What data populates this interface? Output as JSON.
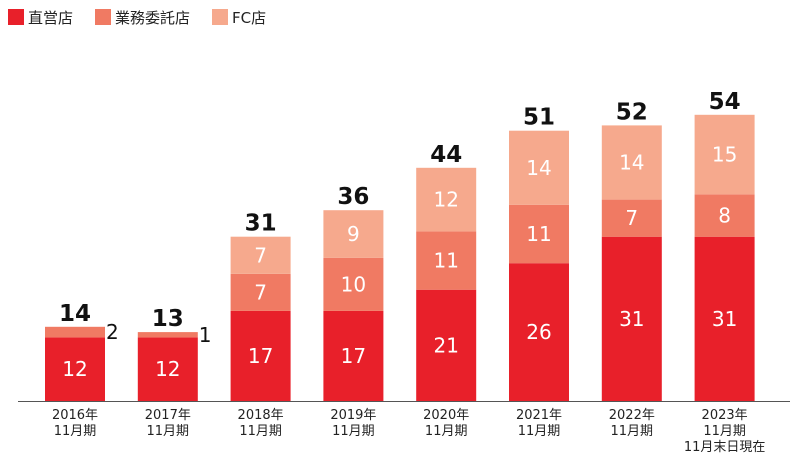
{
  "chart_data": {
    "type": "bar",
    "stacked": true,
    "categories": [
      [
        "2016年",
        "11月期"
      ],
      [
        "2017年",
        "11月期"
      ],
      [
        "2018年",
        "11月期"
      ],
      [
        "2019年",
        "11月期"
      ],
      [
        "2020年",
        "11月期"
      ],
      [
        "2021年",
        "11月期"
      ],
      [
        "2022年",
        "11月期"
      ],
      [
        "2023年",
        "11月期",
        "11月末日現在"
      ]
    ],
    "series": [
      {
        "name": "直営店",
        "color": "#e8202a",
        "values": [
          12,
          12,
          17,
          17,
          21,
          26,
          31,
          31
        ]
      },
      {
        "name": "業務委託店",
        "color": "#f07a63",
        "values": [
          2,
          1,
          7,
          10,
          11,
          11,
          7,
          8
        ]
      },
      {
        "name": "FC店",
        "color": "#f6a98d",
        "values": [
          0,
          0,
          7,
          9,
          12,
          14,
          14,
          15
        ]
      }
    ],
    "totals": [
      14,
      13,
      31,
      36,
      44,
      51,
      52,
      54
    ],
    "ylim": [
      0,
      60
    ],
    "legend_position": "top-left",
    "grid": false,
    "title": "",
    "xlabel": "",
    "ylabel": ""
  }
}
